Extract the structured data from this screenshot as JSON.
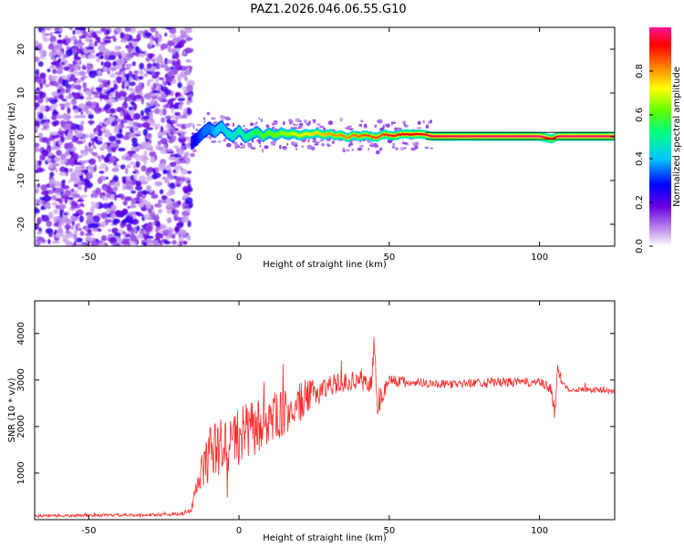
{
  "title": "PAZ1.2026.046.06.55.G10",
  "chart_data": [
    {
      "type": "heatmap",
      "xlabel": "Height of straight line (km)",
      "ylabel": "Frequency (Hz)",
      "xlim": [
        -68,
        125
      ],
      "ylim": [
        -25,
        25
      ],
      "xticks": [
        -50,
        0,
        50,
        100
      ],
      "yticks": [
        -20,
        -10,
        0,
        10,
        20
      ],
      "noise_region_x": [
        -68,
        -16
      ],
      "noise_frequency_range": [
        -25,
        25
      ],
      "signal_track": {
        "x": [
          -16,
          -14,
          -12,
          -10,
          -8,
          -6,
          -4,
          -2,
          0,
          2,
          4,
          6,
          8,
          10,
          12,
          14,
          16,
          18,
          20,
          22,
          24,
          26,
          28,
          30,
          32,
          34,
          36,
          38,
          40,
          42,
          44,
          46,
          48,
          50,
          52,
          54,
          56,
          58,
          60,
          62,
          64,
          70,
          80,
          90,
          100,
          104,
          106,
          110,
          125
        ],
        "freq": [
          -1.5,
          -0.5,
          1.0,
          2.0,
          1.0,
          2.5,
          0.8,
          0.0,
          1.5,
          -0.3,
          0.5,
          1.2,
          0.0,
          1.0,
          0.2,
          1.0,
          0.5,
          0.8,
          0.2,
          0.7,
          0.5,
          1.0,
          0.3,
          0.8,
          0.2,
          0.5,
          -0.3,
          0.4,
          0.0,
          0.5,
          0.0,
          -0.2,
          0.6,
          0.3,
          0.2,
          0.6,
          0.6,
          0.5,
          0.6,
          0.5,
          0.1,
          0.1,
          0.1,
          0.1,
          0.1,
          -0.5,
          0.1,
          0.1,
          0.1
        ],
        "amplitude": [
          0.25,
          0.3,
          0.35,
          0.35,
          0.4,
          0.4,
          0.45,
          0.45,
          0.5,
          0.5,
          0.55,
          0.55,
          0.6,
          0.6,
          0.62,
          0.65,
          0.65,
          0.7,
          0.7,
          0.72,
          0.75,
          0.75,
          0.78,
          0.8,
          0.8,
          0.82,
          0.82,
          0.84,
          0.85,
          0.86,
          0.86,
          0.87,
          0.88,
          0.9,
          0.9,
          0.92,
          0.92,
          0.93,
          0.94,
          0.95,
          0.96,
          0.97,
          0.98,
          0.99,
          0.99,
          0.9,
          0.99,
          0.99,
          0.99
        ]
      },
      "colorbar": {
        "label": "Normalized spectral amplitude",
        "range": [
          0,
          1
        ],
        "ticks": [
          0.0,
          0.2,
          0.4,
          0.6,
          0.8
        ],
        "colors": [
          "#ffffff",
          "#8a2be2",
          "#0000ff",
          "#00ffff",
          "#00ff00",
          "#ffff00",
          "#ff8000",
          "#ff0000",
          "#ff1493"
        ]
      }
    },
    {
      "type": "line",
      "xlabel": "Height of straight line (km)",
      "ylabel": "SNR (10 * v/v)",
      "xlim": [
        -68,
        125
      ],
      "ylim": [
        0,
        4700
      ],
      "xticks": [
        -50,
        0,
        50,
        100
      ],
      "yticks": [
        1000,
        2000,
        3000,
        4000
      ],
      "series": [
        {
          "color": "#ff2a2a",
          "x": [
            -68,
            -50,
            -30,
            -20,
            -16,
            -14,
            -12,
            -10,
            -8,
            -6,
            -4,
            -2,
            0,
            2,
            4,
            6,
            8,
            10,
            12,
            14,
            16,
            18,
            20,
            22,
            24,
            26,
            28,
            30,
            35,
            40,
            44,
            45,
            46,
            50,
            55,
            60,
            70,
            80,
            90,
            100,
            104,
            105,
            106,
            108,
            110,
            115,
            120,
            125
          ],
          "y": [
            80,
            90,
            100,
            120,
            180,
            700,
            1100,
            1400,
            1500,
            1550,
            1600,
            1700,
            1800,
            1850,
            1900,
            2000,
            2050,
            2150,
            2200,
            2250,
            2300,
            2400,
            2500,
            2600,
            2650,
            2750,
            2800,
            2900,
            2950,
            3000,
            2900,
            3800,
            2500,
            3000,
            2950,
            2950,
            2900,
            2950,
            2950,
            2950,
            2800,
            2200,
            3200,
            2900,
            2800,
            2800,
            2780,
            2750
          ],
          "spread": [
            60,
            60,
            60,
            70,
            150,
            600,
            900,
            1200,
            1200,
            1300,
            1300,
            1300,
            1300,
            1300,
            1300,
            1200,
            1200,
            1100,
            1100,
            1000,
            1000,
            900,
            900,
            800,
            700,
            600,
            500,
            450,
            400,
            400,
            500,
            600,
            700,
            300,
            250,
            200,
            180,
            200,
            200,
            200,
            250,
            300,
            300,
            150,
            120,
            120,
            120,
            120
          ]
        }
      ]
    }
  ]
}
